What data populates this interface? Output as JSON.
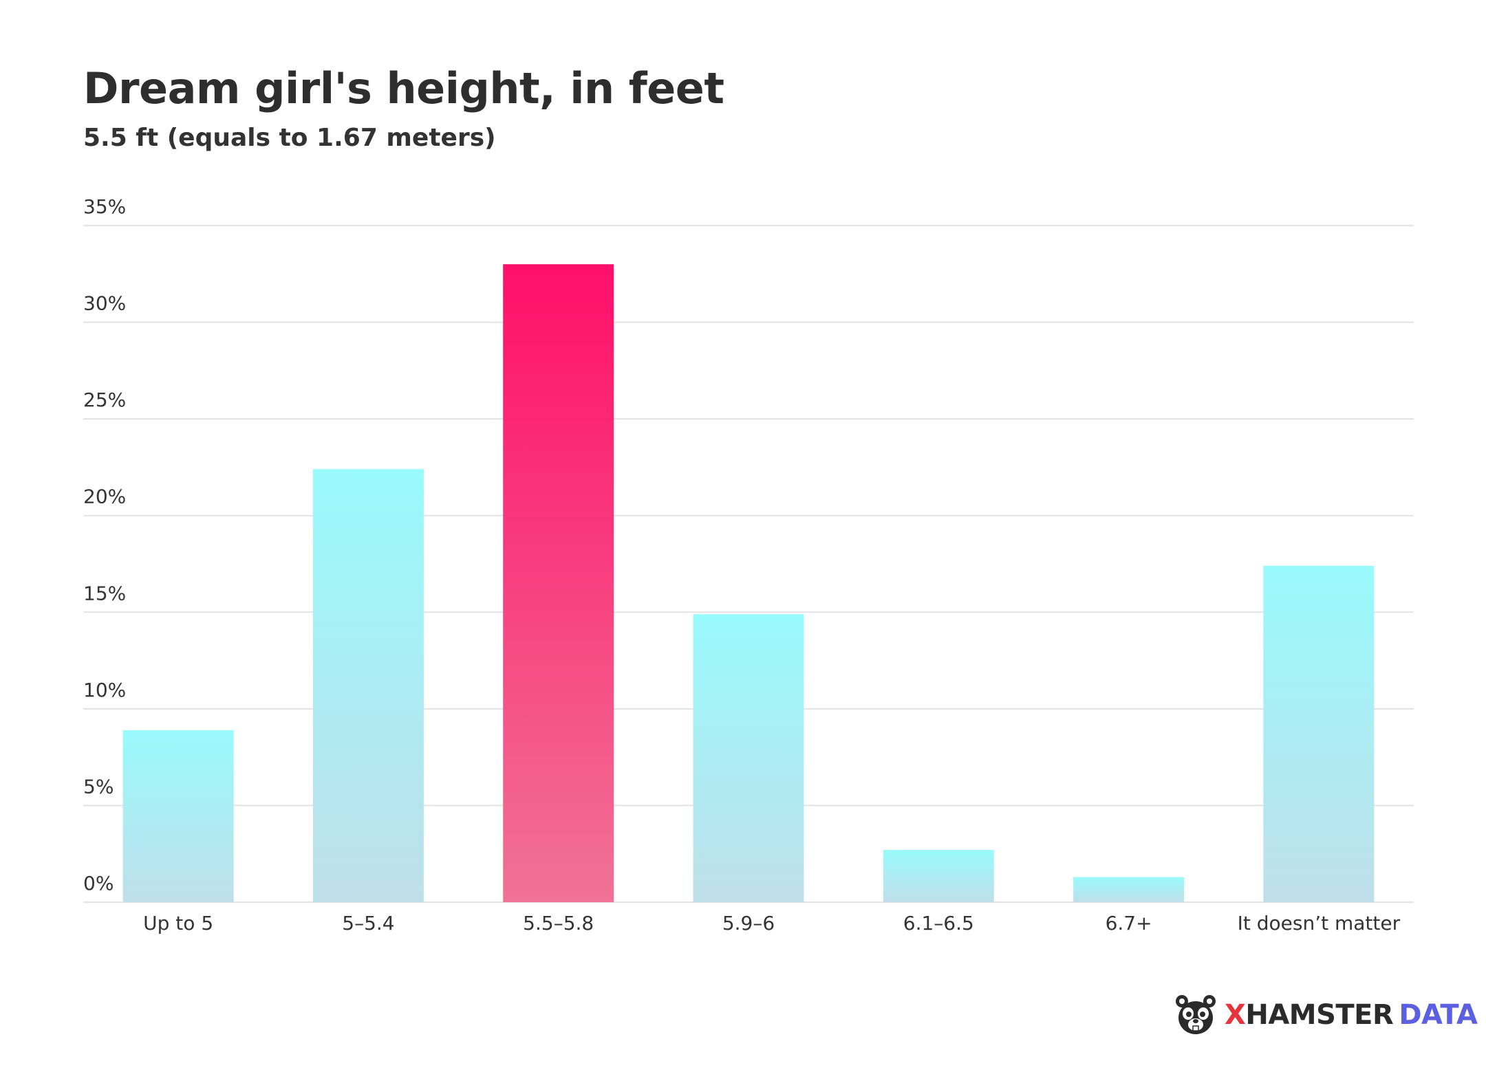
{
  "chart_data": {
    "type": "bar",
    "title": "Dream girl's height, in feet",
    "subtitle": "5.5 ft (equals to 1.67 meters)",
    "categories": [
      "Up to 5",
      "5–5.4",
      "5.5–5.8",
      "5.9–6",
      "6.1–6.5",
      "6.7+",
      "It doesn’t matter"
    ],
    "values": [
      8.9,
      22.4,
      33.0,
      14.9,
      2.7,
      1.3,
      17.4
    ],
    "highlight_index": 2,
    "y_ticks": [
      "0%",
      "5%",
      "10%",
      "15%",
      "20%",
      "25%",
      "30%",
      "35%"
    ],
    "ylim": [
      0,
      35
    ],
    "grid": true,
    "xlabel": "",
    "ylabel": "",
    "colors": {
      "bar_top": "#99fafc",
      "bar_bottom": "#bfdfe9",
      "highlight_top": "#ff0f6a",
      "highlight_bottom": "#f07295",
      "grid": "#e3e3e3",
      "axis_text": "#333333"
    }
  },
  "brand": {
    "icon": "hamster-logo-icon",
    "x": "X",
    "hamster": "HAMSTER",
    "data": "DATA"
  }
}
